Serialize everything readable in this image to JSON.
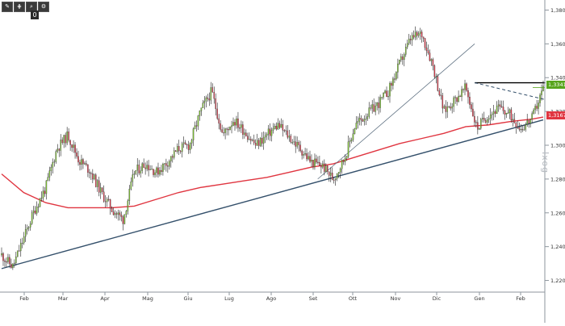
{
  "toolbar": {
    "buttons": [
      {
        "icon": "pencil-icon",
        "glyph": "✎"
      },
      {
        "icon": "parallel-lines-icon",
        "glyph": "⋕"
      },
      {
        "icon": "zoom-icon",
        "glyph": "⌕"
      },
      {
        "icon": "settings-icon",
        "glyph": "⚙"
      }
    ],
    "count": "0"
  },
  "watermark": "Ixog",
  "colors": {
    "bull_candle": "#7fc531",
    "bear_candle": "#e03a4a",
    "wick": "#222222",
    "ma_line": "#e03540",
    "trend_line": "#34506b",
    "dashed_line": "#34506b",
    "resistance_line": "#000000"
  },
  "chart_data": {
    "type": "candlestick",
    "x_tick_labels": [
      "Feb",
      "Mar",
      "Apr",
      "Mag",
      "Giu",
      "Lug",
      "Ago",
      "Set",
      "Ott",
      "Nov",
      "Dic",
      "Gen",
      "Feb"
    ],
    "y_ticks": [
      1.38,
      1.36,
      1.34,
      1.32,
      1.3,
      1.28,
      1.26,
      1.24,
      1.22
    ],
    "y_tick_labels": [
      "1,3800",
      "1,3600",
      "1,3400",
      "1,3200",
      "1,3000",
      "1,2800",
      "1,2600",
      "1,2400",
      "1,2200"
    ],
    "ylim": [
      1.215,
      1.385
    ],
    "last_price": {
      "value": 1.3341,
      "label": "1,3341"
    },
    "ma_value": {
      "value": 1.3167,
      "label": "1,3167"
    },
    "close_path": [
      [
        0,
        1.235
      ],
      [
        1,
        1.228
      ],
      [
        2,
        1.245
      ],
      [
        3,
        1.262
      ],
      [
        4,
        1.275
      ],
      [
        5,
        1.298
      ],
      [
        6,
        1.306
      ],
      [
        7,
        1.291
      ],
      [
        8,
        1.285
      ],
      [
        9,
        1.272
      ],
      [
        10,
        1.262
      ],
      [
        11,
        1.256
      ],
      [
        12,
        1.284
      ],
      [
        13,
        1.289
      ],
      [
        14,
        1.284
      ],
      [
        15,
        1.29
      ],
      [
        16,
        1.298
      ],
      [
        17,
        1.3
      ],
      [
        18,
        1.32
      ],
      [
        19,
        1.332
      ],
      [
        20,
        1.306
      ],
      [
        21,
        1.315
      ],
      [
        22,
        1.308
      ],
      [
        23,
        1.3
      ],
      [
        24,
        1.306
      ],
      [
        25,
        1.312
      ],
      [
        26,
        1.305
      ],
      [
        27,
        1.298
      ],
      [
        28,
        1.29
      ],
      [
        29,
        1.288
      ],
      [
        30,
        1.28
      ],
      [
        31,
        1.292
      ],
      [
        32,
        1.312
      ],
      [
        33,
        1.318
      ],
      [
        34,
        1.324
      ],
      [
        35,
        1.332
      ],
      [
        36,
        1.348
      ],
      [
        37,
        1.363
      ],
      [
        38,
        1.366
      ],
      [
        39,
        1.348
      ],
      [
        40,
        1.32
      ],
      [
        41,
        1.327
      ],
      [
        42,
        1.334
      ],
      [
        43,
        1.31
      ],
      [
        44,
        1.318
      ],
      [
        45,
        1.322
      ],
      [
        46,
        1.318
      ],
      [
        47,
        1.31
      ],
      [
        48,
        1.316
      ],
      [
        49,
        1.334
      ]
    ],
    "ma_200": [
      [
        0,
        1.283
      ],
      [
        2,
        1.272
      ],
      [
        4,
        1.266
      ],
      [
        6,
        1.263
      ],
      [
        8,
        1.263
      ],
      [
        10,
        1.263
      ],
      [
        12,
        1.264
      ],
      [
        14,
        1.268
      ],
      [
        16,
        1.272
      ],
      [
        18,
        1.275
      ],
      [
        20,
        1.277
      ],
      [
        22,
        1.279
      ],
      [
        24,
        1.281
      ],
      [
        26,
        1.284
      ],
      [
        28,
        1.287
      ],
      [
        30,
        1.289
      ],
      [
        32,
        1.293
      ],
      [
        34,
        1.297
      ],
      [
        36,
        1.301
      ],
      [
        38,
        1.304
      ],
      [
        40,
        1.307
      ],
      [
        42,
        1.311
      ],
      [
        44,
        1.312
      ],
      [
        46,
        1.314
      ],
      [
        48,
        1.3155
      ],
      [
        49,
        1.3167
      ]
    ],
    "trend_lines": [
      {
        "name": "long-term-support",
        "from": [
          0,
          1.227
        ],
        "to": [
          49,
          1.315
        ]
      },
      {
        "name": "short-term-support",
        "from": [
          28.6,
          1.28
        ],
        "to": [
          42.8,
          1.36
        ]
      },
      {
        "name": "resistance-horizontal",
        "from": [
          42.8,
          1.337
        ],
        "to": [
          49.2,
          1.337
        ]
      },
      {
        "name": "descending-dashed",
        "from": [
          42.8,
          1.337
        ],
        "to": [
          49.2,
          1.327
        ]
      }
    ],
    "legend": "none",
    "grid": false
  }
}
